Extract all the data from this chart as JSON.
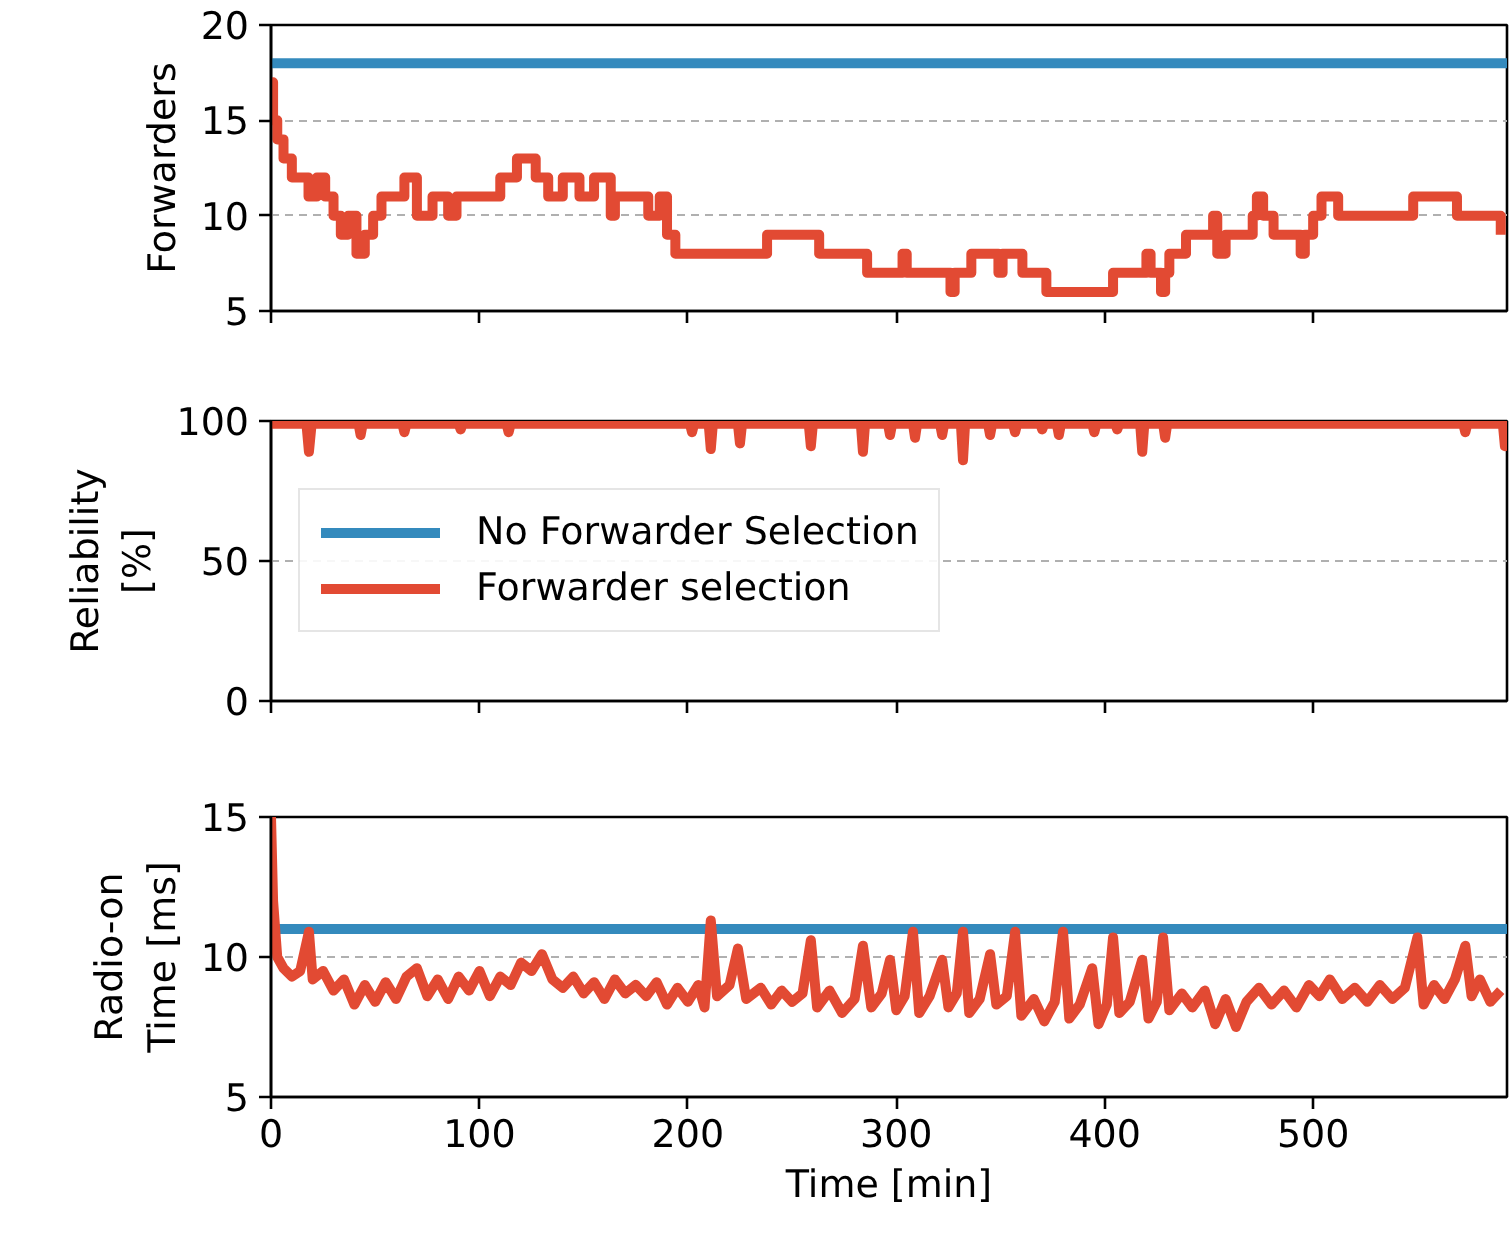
{
  "chart_data": [
    {
      "type": "step",
      "ylabel": "Forwarders",
      "xlim": [
        0,
        593
      ],
      "xticks": [
        0,
        100,
        200,
        300,
        400,
        500
      ],
      "ylim": [
        5,
        20
      ],
      "yticks": [
        5,
        10,
        15,
        20
      ],
      "grid": "y",
      "tick_labels": "y",
      "line_style": "solid",
      "marker": "none",
      "series": [
        {
          "type": "line",
          "color": "#348abd",
          "x": [
            0,
            593
          ],
          "values": [
            18,
            18
          ]
        },
        {
          "type": "step",
          "color": "#e24a33",
          "x": [
            0,
            1,
            3,
            6,
            10,
            18,
            22,
            26,
            30,
            33.5,
            37,
            41,
            45,
            49,
            53,
            60,
            64,
            70,
            77.5,
            85,
            89,
            110,
            118,
            127,
            133,
            140,
            148,
            155,
            163,
            165,
            181,
            186.5,
            190,
            194,
            238,
            263,
            286,
            303,
            305,
            326,
            328,
            336,
            349,
            351,
            360.5,
            372,
            404,
            420,
            422,
            427,
            429,
            431,
            435,
            439,
            452,
            454,
            458,
            460,
            471,
            473,
            476,
            481,
            494,
            496,
            500,
            504,
            512,
            548,
            569,
            590
          ],
          "values": [
            17,
            15,
            14,
            13,
            12,
            11,
            12,
            11,
            10,
            9,
            10,
            8,
            9,
            10,
            11,
            11,
            12,
            10,
            11,
            10,
            11,
            12,
            13,
            12,
            11,
            12,
            11,
            12,
            10,
            11,
            10,
            11,
            9,
            8,
            9,
            8,
            7,
            8,
            7,
            6,
            7,
            8,
            7,
            8,
            7,
            6,
            7,
            8,
            7,
            6,
            7,
            8,
            8,
            9,
            10,
            8,
            9,
            9,
            10,
            11,
            10,
            9,
            8,
            9,
            10,
            11,
            10,
            11,
            10,
            9
          ]
        }
      ]
    },
    {
      "type": "line",
      "ylabel": "Reliability\n[%]",
      "xlim": [
        0,
        593
      ],
      "xticks": [
        0,
        100,
        200,
        300,
        400,
        500
      ],
      "ylim": [
        0,
        100
      ],
      "yticks": [
        0,
        50,
        100
      ],
      "grid": "y",
      "tick_labels": "y",
      "legend": "left",
      "line_style": "solid",
      "marker": "none",
      "series": [
        {
          "name": "No Forwarder Selection",
          "color": "#348abd"
        },
        {
          "name": "Forwarder selection",
          "color": "#e24a33",
          "x": [
            0,
            17,
            18.2,
            19.5,
            42,
            43,
            44,
            63,
            64,
            65,
            90,
            91,
            92,
            113,
            114,
            115,
            201,
            202,
            203,
            210,
            211,
            212,
            224,
            225,
            226,
            258,
            259,
            260,
            283,
            284,
            285,
            296,
            297,
            298,
            308,
            309,
            310,
            321,
            322,
            323,
            331,
            332,
            333,
            344,
            345,
            346,
            356,
            357,
            358,
            369,
            370,
            371,
            377,
            378,
            379,
            394,
            395,
            396,
            405,
            406,
            407,
            417,
            418,
            419,
            428,
            429,
            430,
            572,
            573,
            574,
            591,
            592,
            593
          ],
          "values": [
            99,
            99,
            89,
            99,
            99,
            95,
            99,
            99,
            96,
            99,
            99,
            97,
            99,
            99,
            96,
            99,
            99,
            96,
            99,
            99,
            90,
            99,
            99,
            92,
            99,
            99,
            91,
            99,
            99,
            89,
            99,
            99,
            95,
            99,
            99,
            94,
            99,
            99,
            95,
            99,
            99,
            86,
            99,
            99,
            95,
            99,
            99,
            96,
            99,
            99,
            97,
            99,
            99,
            95,
            99,
            99,
            96,
            99,
            99,
            97,
            99,
            99,
            89,
            99,
            99,
            94,
            99,
            99,
            96,
            99,
            99,
            91,
            99
          ]
        }
      ]
    },
    {
      "type": "line",
      "xlabel": "Time [min]",
      "ylabel": "Radio-on\nTime [ms]",
      "xlim": [
        0,
        593
      ],
      "xticks": [
        0,
        100,
        200,
        300,
        400,
        500
      ],
      "ylim": [
        5,
        15
      ],
      "yticks": [
        5,
        10,
        15
      ],
      "grid": "y",
      "line_style": "solid",
      "marker": "none",
      "series": [
        {
          "color": "#348abd",
          "x": [
            0,
            593
          ],
          "values": [
            11,
            11
          ]
        },
        {
          "color": "#e24a33",
          "x": [
            0,
            1,
            3,
            6,
            10,
            14,
            18.2,
            20,
            25,
            30,
            35,
            40,
            45,
            50,
            55,
            60,
            65,
            70,
            75,
            80,
            85,
            90,
            95,
            100,
            105,
            110,
            115,
            120,
            125,
            130,
            135,
            140,
            145,
            150,
            155,
            160,
            165,
            170,
            175,
            180,
            185,
            190,
            195,
            200,
            205,
            208,
            211,
            214,
            220,
            224,
            228,
            235,
            240,
            245,
            250,
            255,
            259,
            262,
            268,
            274,
            280,
            284,
            288,
            293,
            297,
            300,
            304,
            308,
            311,
            316,
            322,
            325,
            329,
            332,
            335,
            340,
            345,
            348,
            353,
            357,
            360,
            366,
            371,
            376,
            380,
            383,
            388,
            394,
            397,
            401,
            404,
            407,
            412,
            418,
            421,
            425,
            428,
            431,
            437,
            442,
            448,
            453,
            458,
            463,
            468,
            474,
            480,
            486,
            492,
            498,
            503,
            508,
            514,
            520,
            526,
            532,
            538,
            544,
            550,
            553,
            558,
            563,
            568,
            573,
            576,
            580,
            585,
            590
          ],
          "values": [
            15,
            12,
            10,
            9.6,
            9.3,
            9.5,
            10.9,
            9.2,
            9.5,
            8.8,
            9.2,
            8.3,
            9.0,
            8.4,
            9.1,
            8.5,
            9.3,
            9.6,
            8.6,
            9.2,
            8.5,
            9.3,
            8.8,
            9.5,
            8.6,
            9.3,
            9.0,
            9.8,
            9.5,
            10.1,
            9.2,
            8.9,
            9.3,
            8.7,
            9.1,
            8.5,
            9.2,
            8.7,
            9.0,
            8.6,
            9.1,
            8.3,
            8.9,
            8.4,
            9.0,
            8.2,
            11.3,
            8.6,
            9.0,
            10.3,
            8.5,
            8.9,
            8.3,
            8.8,
            8.4,
            8.7,
            10.6,
            8.2,
            8.8,
            8.0,
            8.5,
            10.4,
            8.2,
            8.7,
            9.9,
            8.1,
            8.6,
            10.9,
            8.0,
            8.6,
            9.9,
            8.2,
            8.7,
            10.9,
            8.0,
            8.5,
            10.1,
            8.3,
            8.6,
            10.9,
            7.9,
            8.5,
            7.7,
            8.4,
            10.9,
            7.8,
            8.3,
            9.6,
            7.6,
            8.3,
            10.7,
            8.0,
            8.4,
            9.9,
            7.8,
            8.4,
            10.7,
            8.1,
            8.7,
            8.2,
            8.8,
            7.6,
            8.5,
            7.5,
            8.4,
            8.9,
            8.3,
            8.8,
            8.2,
            9.0,
            8.6,
            9.2,
            8.5,
            8.9,
            8.4,
            9.0,
            8.5,
            8.9,
            10.7,
            8.3,
            9.0,
            8.5,
            9.2,
            10.4,
            8.6,
            9.2,
            8.4,
            8.8
          ]
        }
      ]
    }
  ]
}
